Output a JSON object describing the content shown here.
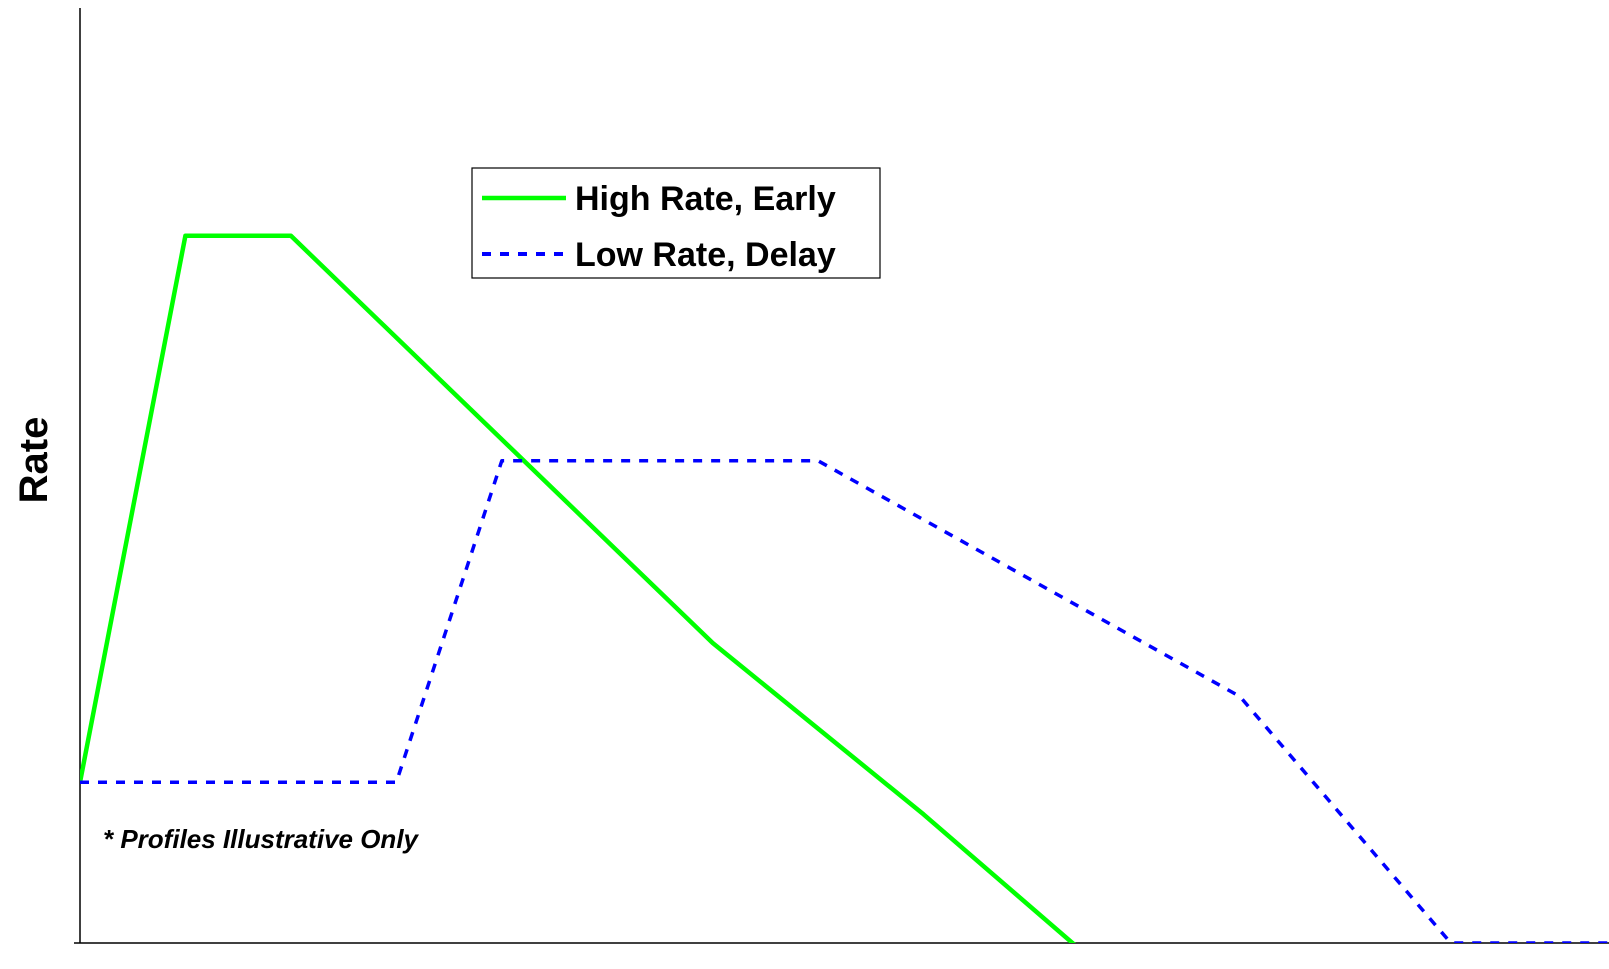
{
  "chart_data": {
    "type": "line",
    "title": "",
    "xlabel": "",
    "ylabel": "Rate",
    "xlim": [
      0,
      14.5
    ],
    "ylim": [
      0,
      8.8
    ],
    "grid": false,
    "x_tick_labels": false,
    "y_tick_labels": false,
    "legend_placement": "top-center",
    "annotation": "* Profiles Illustrative Only",
    "series": [
      {
        "name": "High Rate, Early",
        "color": "#00ff00",
        "style": "solid",
        "x": [
          0,
          1,
          2,
          6,
          8,
          10
        ],
        "y": [
          1.5,
          6.6,
          6.6,
          2.8,
          1.2,
          -0.5
        ]
      },
      {
        "name": "Low Rate, Delay",
        "color": "#0000ff",
        "style": "dashed",
        "x": [
          0,
          3,
          4,
          7,
          11,
          13,
          14.5
        ],
        "y": [
          1.5,
          1.5,
          4.5,
          4.5,
          2.3,
          0,
          0
        ]
      }
    ]
  }
}
